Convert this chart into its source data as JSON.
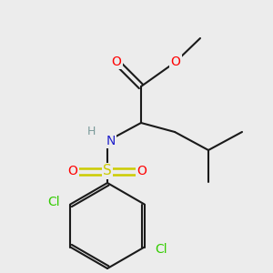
{
  "bg_color": "#ececec",
  "bond_color": "#1a1a1a",
  "atom_colors": {
    "O": "#ff0000",
    "N": "#2222cc",
    "S": "#cccc00",
    "Cl": "#33cc00",
    "H": "#7a9a9a",
    "C": "#1a1a1a"
  },
  "figsize": [
    3.0,
    3.0
  ],
  "dpi": 100
}
